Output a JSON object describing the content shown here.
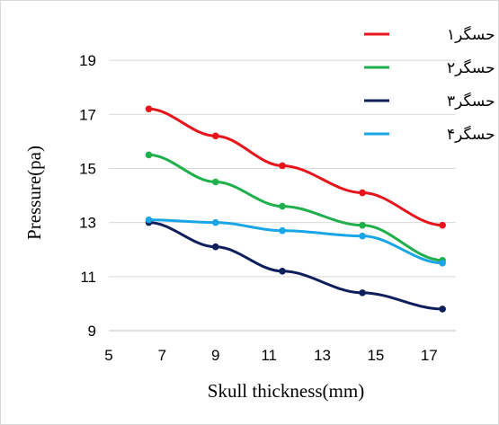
{
  "chart_data": {
    "type": "line",
    "xlabel": "Skull thickness(mm)",
    "ylabel": "Pressure(pa)",
    "xlim": [
      5,
      18
    ],
    "ylim": [
      9,
      20
    ],
    "xticks": [
      5,
      7,
      9,
      11,
      13,
      15,
      17
    ],
    "yticks": [
      9,
      11,
      13,
      15,
      17,
      19
    ],
    "grid": "horizontal",
    "legend_position": "top-right",
    "x": [
      6.5,
      9,
      11.5,
      14.5,
      17.5
    ],
    "series": [
      {
        "name": "حسگر۱",
        "color": "#e8141b",
        "values": [
          17.2,
          16.2,
          15.1,
          14.1,
          12.9
        ]
      },
      {
        "name": "حسگر۲",
        "color": "#1fb04b",
        "values": [
          15.5,
          14.5,
          13.6,
          12.9,
          11.6
        ]
      },
      {
        "name": "حسگر۳",
        "color": "#0f1f5c",
        "values": [
          13.0,
          12.1,
          11.2,
          10.4,
          9.8
        ]
      },
      {
        "name": "حسگر۴",
        "color": "#1aa6e6",
        "values": [
          13.1,
          13.0,
          12.7,
          12.5,
          11.5
        ]
      }
    ]
  }
}
